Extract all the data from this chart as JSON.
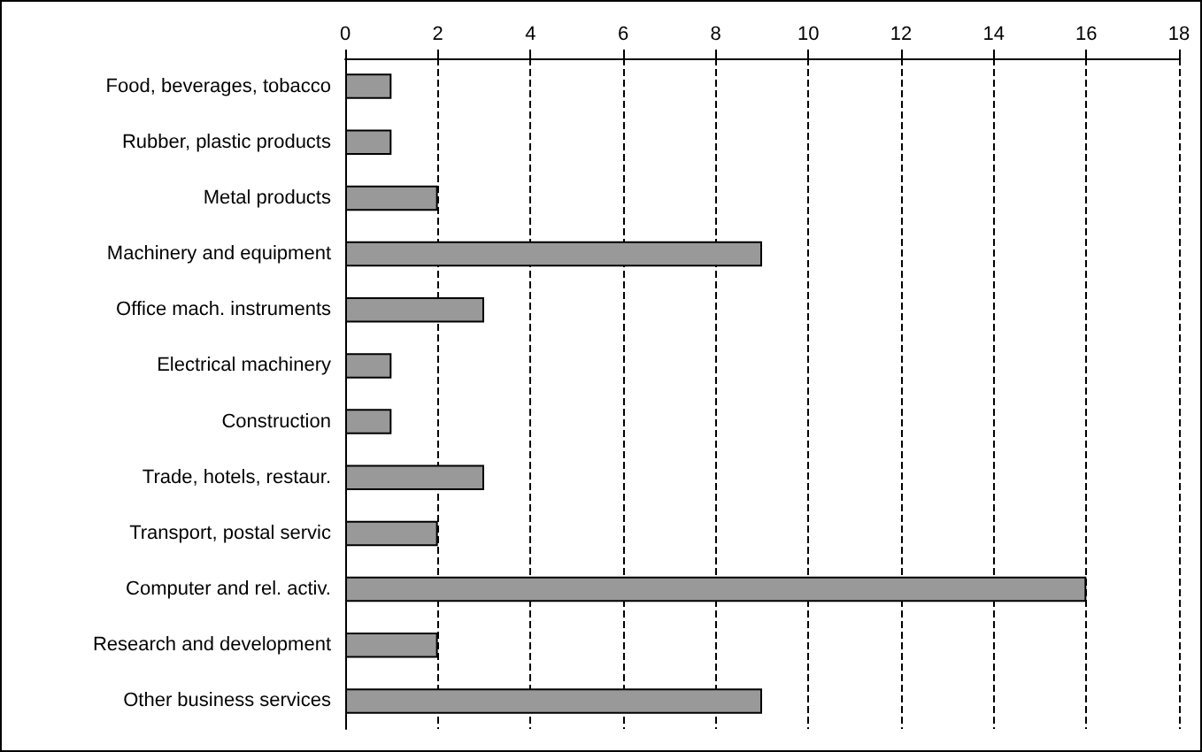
{
  "chart_data": {
    "type": "bar",
    "orientation": "horizontal",
    "categories": [
      "Food, beverages, tobacco",
      "Rubber, plastic products",
      "Metal products",
      "Machinery and equipment",
      "Office mach. instruments",
      "Electrical machinery",
      "Construction",
      "Trade, hotels, restaur.",
      "Transport, postal servic",
      "Computer and rel. activ.",
      "Research and development",
      "Other business services"
    ],
    "values": [
      1,
      1,
      2,
      9,
      3,
      1,
      1,
      3,
      2,
      16,
      2,
      9
    ],
    "color": "#999999",
    "xlim": [
      0,
      18
    ],
    "xticks": [
      0,
      2,
      4,
      6,
      8,
      10,
      12,
      14,
      16,
      18
    ],
    "grid": "x",
    "line_style": "dashed"
  }
}
